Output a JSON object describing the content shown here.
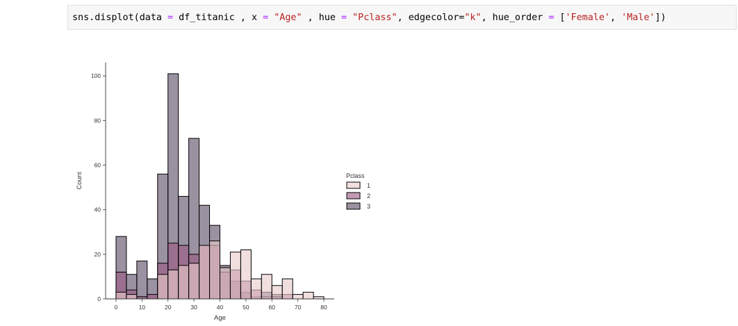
{
  "notebook": {
    "code_cell": {
      "parts": [
        {
          "text": "sns.displot(data ",
          "cls": ""
        },
        {
          "text": "=",
          "cls": "tok-op"
        },
        {
          "text": " df_titanic , x ",
          "cls": ""
        },
        {
          "text": "=",
          "cls": "tok-op"
        },
        {
          "text": " ",
          "cls": ""
        },
        {
          "text": "\"Age\"",
          "cls": "tok-str"
        },
        {
          "text": " , hue ",
          "cls": ""
        },
        {
          "text": "=",
          "cls": "tok-op"
        },
        {
          "text": " ",
          "cls": ""
        },
        {
          "text": "\"Pclass\"",
          "cls": "tok-str"
        },
        {
          "text": ", edgecolor=",
          "cls": ""
        },
        {
          "text": "\"k\"",
          "cls": "tok-str"
        },
        {
          "text": ", hue_order ",
          "cls": ""
        },
        {
          "text": "=",
          "cls": "tok-op"
        },
        {
          "text": " [",
          "cls": ""
        },
        {
          "text": "'Female'",
          "cls": "tok-str"
        },
        {
          "text": ", ",
          "cls": ""
        },
        {
          "text": "'Male'",
          "cls": "tok-str"
        },
        {
          "text": "])",
          "cls": ""
        }
      ]
    }
  },
  "chart_data": {
    "type": "bar",
    "xlabel": "Age",
    "ylabel": "Count",
    "xlim": [
      -4,
      84
    ],
    "ylim": [
      0,
      106
    ],
    "xticks": [
      0,
      10,
      20,
      30,
      40,
      50,
      60,
      70,
      80
    ],
    "yticks": [
      0,
      20,
      40,
      60,
      80,
      100
    ],
    "bin_edges": [
      0,
      4,
      8,
      12,
      16,
      20,
      24,
      28,
      32,
      36,
      40,
      44,
      48,
      52,
      56,
      60,
      64,
      68,
      72,
      76,
      80
    ],
    "legend": {
      "title": "Pclass",
      "placement": "right"
    },
    "grid": false,
    "series": [
      {
        "name": "3",
        "color": "#5c4e68",
        "values": [
          28,
          11,
          17,
          9,
          56,
          101,
          46,
          72,
          42,
          33,
          15,
          8,
          3,
          1,
          3,
          2,
          0,
          0,
          0,
          0
        ]
      },
      {
        "name": "2",
        "color": "#9c5a84",
        "values": [
          12,
          4,
          1,
          2,
          16,
          25,
          24,
          20,
          24,
          24,
          12,
          13,
          8,
          4,
          1,
          1,
          2,
          0,
          0,
          0
        ]
      },
      {
        "name": "1",
        "color": "#e8cccb",
        "values": [
          3,
          2,
          0,
          0,
          11,
          13,
          15,
          16,
          24,
          26,
          14,
          21,
          22,
          9,
          11,
          6,
          9,
          2,
          3,
          1
        ]
      }
    ]
  }
}
